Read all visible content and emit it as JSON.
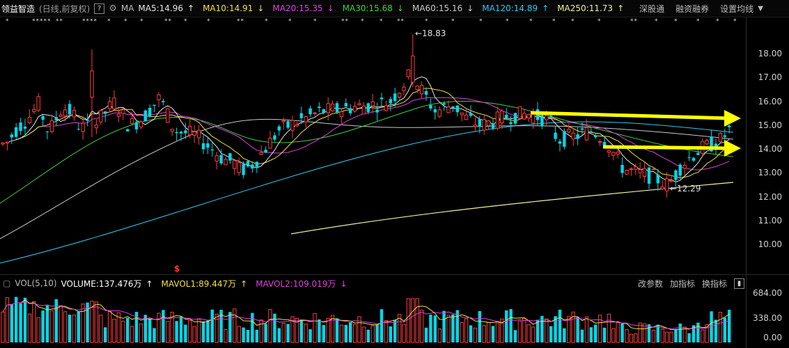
{
  "header": {
    "stock_name": "领益智造",
    "stock_sub": "(日线,前复权)",
    "help": "?",
    "ma_label": "MA",
    "ma_values": [
      {
        "label": "MA5:14.96",
        "arrow": "↑",
        "color": "#e6e6e6"
      },
      {
        "label": "MA10:14.91",
        "arrow": "↓",
        "color": "#f0e040"
      },
      {
        "label": "MA20:15.35",
        "arrow": "↓",
        "color": "#e040e0"
      },
      {
        "label": "MA30:15.68",
        "arrow": "↓",
        "color": "#40d040"
      },
      {
        "label": "MA60:15.16",
        "arrow": "↓",
        "color": "#c8c8c8"
      },
      {
        "label": "MA120:14.89",
        "arrow": "↑",
        "color": "#30c8f0"
      },
      {
        "label": "MA250:11.73",
        "arrow": "↑",
        "color": "#f0f0a0"
      }
    ],
    "menu": [
      "深股通",
      "融资融券",
      "设置均线"
    ]
  },
  "price_axis": [
    "18.00",
    "17.00",
    "16.00",
    "15.00",
    "14.00",
    "13.00",
    "12.00",
    "11.00",
    "10.00"
  ],
  "annotations": {
    "high": "←18.83",
    "low": "←12.29",
    "marker": "$"
  },
  "volume": {
    "label": "VOL(5,10)",
    "volume": "VOLUME:137.476万",
    "volume_arrow": "↑",
    "mavol1": "MAVOL1:89.447万",
    "mavol1_arrow": "↑",
    "mavol2": "MAVOL2:109.019万",
    "mavol2_arrow": "↓",
    "tools": [
      "改参数",
      "加指标",
      "换指标"
    ],
    "axis": [
      "684.00",
      "338.00",
      "0.00"
    ]
  },
  "colors": {
    "up": "#ff3c3c",
    "down": "#00d8e8",
    "ma5": "#e6e6e6",
    "ma10": "#f0e040",
    "ma20": "#e040e0",
    "ma30": "#40d040",
    "ma60": "#c8c8c8",
    "ma120": "#30c8f0",
    "ma250": "#f0f0a0",
    "arrow": "#ffff00"
  }
}
